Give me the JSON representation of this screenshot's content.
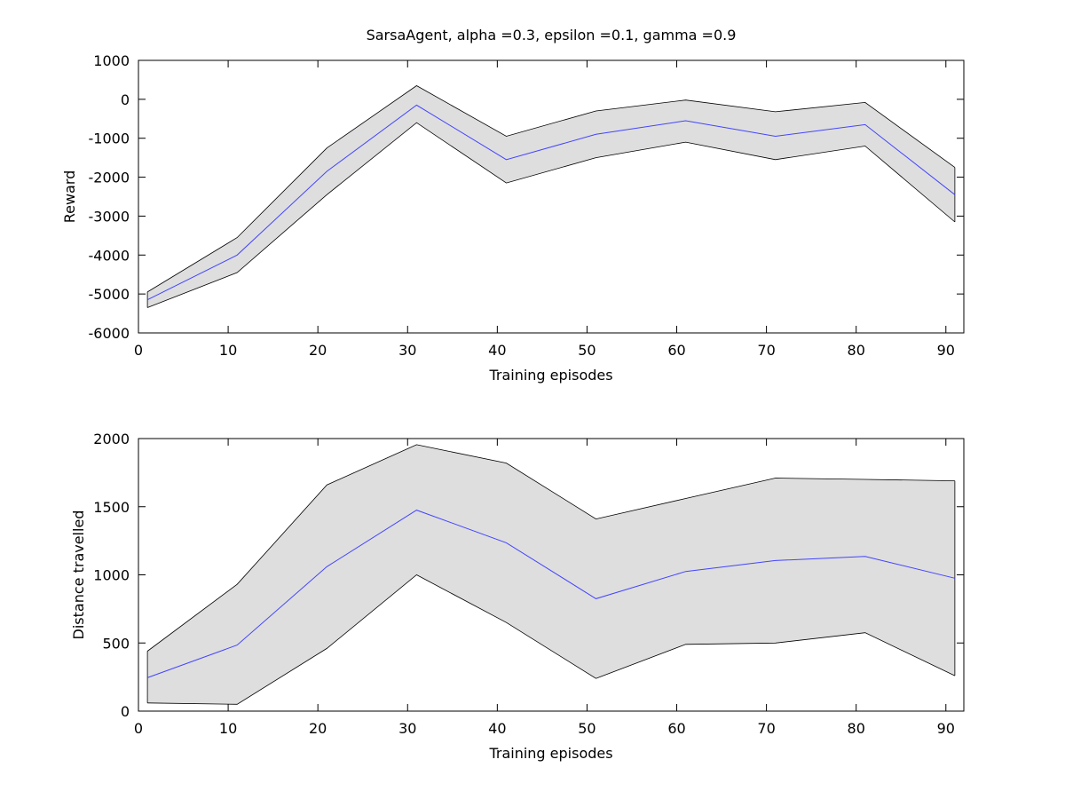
{
  "figure": {
    "title": "SarsaAgent, alpha =0.3, epsilon =0.1, gamma =0.9"
  },
  "colors": {
    "band_fill": "#dedede",
    "band_edge": "#000000",
    "mean_line": "#4444ff",
    "frame": "#000000"
  },
  "chart_data": [
    {
      "type": "area",
      "title": "SarsaAgent, alpha =0.3, epsilon =0.1, gamma =0.9",
      "xlabel": "Training episodes",
      "ylabel": "Reward",
      "xlim": [
        0,
        92
      ],
      "ylim": [
        -6000,
        1000
      ],
      "xticks": [
        0,
        10,
        20,
        30,
        40,
        50,
        60,
        70,
        80,
        90
      ],
      "yticks": [
        -6000,
        -5000,
        -4000,
        -3000,
        -2000,
        -1000,
        0,
        1000
      ],
      "x": [
        1,
        11,
        21,
        31,
        41,
        51,
        61,
        71,
        81,
        91
      ],
      "mean": [
        -5150,
        -4000,
        -1850,
        -150,
        -1550,
        -900,
        -550,
        -950,
        -650,
        -2450
      ],
      "upper": [
        -4950,
        -3550,
        -1250,
        350,
        -950,
        -300,
        -20,
        -320,
        -80,
        -1750
      ],
      "lower": [
        -5350,
        -4450,
        -2450,
        -600,
        -2150,
        -1500,
        -1100,
        -1550,
        -1200,
        -3150
      ],
      "grid": false,
      "legend": "none"
    },
    {
      "type": "area",
      "title": "",
      "xlabel": "Training episodes",
      "ylabel": "Distance travelled",
      "xlim": [
        0,
        92
      ],
      "ylim": [
        0,
        2000
      ],
      "xticks": [
        0,
        10,
        20,
        30,
        40,
        50,
        60,
        70,
        80,
        90
      ],
      "yticks": [
        0,
        500,
        1000,
        1500,
        2000
      ],
      "x": [
        1,
        11,
        21,
        31,
        41,
        51,
        61,
        71,
        81,
        91
      ],
      "mean": [
        245,
        485,
        1060,
        1475,
        1235,
        825,
        1025,
        1105,
        1135,
        975
      ],
      "upper": [
        440,
        930,
        1660,
        1955,
        1820,
        1410,
        1560,
        1710,
        1700,
        1690
      ],
      "lower": [
        60,
        50,
        460,
        1000,
        650,
        240,
        490,
        500,
        575,
        260
      ],
      "grid": false,
      "legend": "none"
    }
  ]
}
